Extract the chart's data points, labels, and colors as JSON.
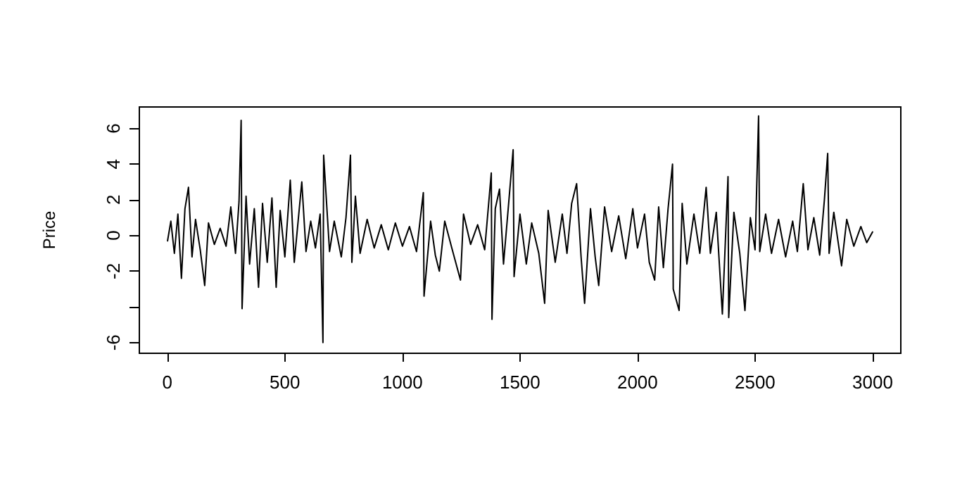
{
  "chart_data": {
    "type": "line",
    "ylabel": "Price",
    "xlim": [
      -119,
      3120
    ],
    "xticks": [
      0,
      500,
      1000,
      1500,
      2000,
      2500,
      3000
    ],
    "ylim": [
      -6.6,
      7.2
    ],
    "yticks": [
      6,
      4,
      2,
      0,
      -2,
      {
        "value": -4,
        "label": null
      },
      -6
    ],
    "marker": "none",
    "line_style": "solid",
    "series": [
      {
        "color": "#000000",
        "x": [
          1,
          15,
          30,
          45,
          60,
          75,
          90,
          105,
          120,
          140,
          159,
          175,
          200,
          225,
          250,
          270,
          290,
          305,
          314,
          318,
          335,
          350,
          370,
          388,
          405,
          425,
          445,
          463,
          480,
          500,
          523,
          540,
          572,
          590,
          610,
          630,
          650,
          662,
          665,
          690,
          710,
          740,
          760,
          779,
          785,
          800,
          820,
          850,
          880,
          910,
          940,
          970,
          1000,
          1030,
          1060,
          1089,
          1092,
          1120,
          1140,
          1157,
          1180,
          1210,
          1247,
          1260,
          1290,
          1320,
          1350,
          1378,
          1381,
          1395,
          1413,
          1430,
          1450,
          1471,
          1475,
          1500,
          1527,
          1550,
          1580,
          1605,
          1620,
          1650,
          1680,
          1700,
          1720,
          1741,
          1760,
          1775,
          1800,
          1820,
          1835,
          1860,
          1890,
          1920,
          1950,
          1980,
          2000,
          2030,
          2050,
          2073,
          2090,
          2110,
          2130,
          2149,
          2152,
          2177,
          2190,
          2210,
          2240,
          2265,
          2292,
          2310,
          2335,
          2361,
          2385,
          2388,
          2410,
          2435,
          2457,
          2480,
          2500,
          2515,
          2520,
          2545,
          2570,
          2600,
          2630,
          2660,
          2680,
          2705,
          2725,
          2750,
          2775,
          2795,
          2809,
          2815,
          2835,
          2868,
          2890,
          2920,
          2950,
          2975,
          3000
        ],
        "values": [
          -0.3,
          0.8,
          -1.0,
          1.2,
          -2.4,
          1.5,
          2.7,
          -1.2,
          0.9,
          -0.8,
          -2.8,
          0.7,
          -0.5,
          0.4,
          -0.6,
          1.6,
          -1.0,
          1.9,
          6.45,
          -4.1,
          2.2,
          -1.6,
          1.5,
          -2.9,
          1.8,
          -1.5,
          2.1,
          -2.9,
          1.4,
          -1.2,
          3.1,
          -1.5,
          3.0,
          -0.9,
          0.8,
          -0.7,
          1.2,
          -6.0,
          4.5,
          -0.9,
          0.8,
          -1.2,
          1.0,
          4.5,
          -1.5,
          2.2,
          -1.0,
          0.9,
          -0.7,
          0.6,
          -0.8,
          0.7,
          -0.6,
          0.5,
          -0.9,
          2.4,
          -3.4,
          0.8,
          -1.1,
          -2.0,
          0.8,
          -0.7,
          -2.5,
          1.2,
          -0.5,
          0.6,
          -0.8,
          3.5,
          -4.7,
          1.5,
          2.6,
          -1.6,
          1.5,
          4.8,
          -2.3,
          1.2,
          -1.6,
          0.7,
          -1.0,
          -3.8,
          1.4,
          -1.5,
          1.2,
          -1.0,
          1.8,
          2.9,
          -1.2,
          -3.8,
          1.5,
          -1.2,
          -2.8,
          1.6,
          -0.9,
          1.1,
          -1.3,
          1.5,
          -0.7,
          1.2,
          -1.5,
          -2.5,
          1.6,
          -1.8,
          1.5,
          4.0,
          -3.0,
          -4.2,
          1.8,
          -1.6,
          1.2,
          -1.0,
          2.7,
          -1.0,
          1.3,
          -4.4,
          3.3,
          -4.6,
          1.3,
          -1.0,
          -4.2,
          1.0,
          -0.8,
          6.7,
          -0.9,
          1.2,
          -1.0,
          0.9,
          -1.2,
          0.8,
          -0.9,
          2.9,
          -0.8,
          1.0,
          -1.1,
          2.0,
          4.6,
          -1.0,
          1.3,
          -1.7,
          0.9,
          -0.6,
          0.5,
          -0.4,
          0.2
        ]
      }
    ]
  }
}
